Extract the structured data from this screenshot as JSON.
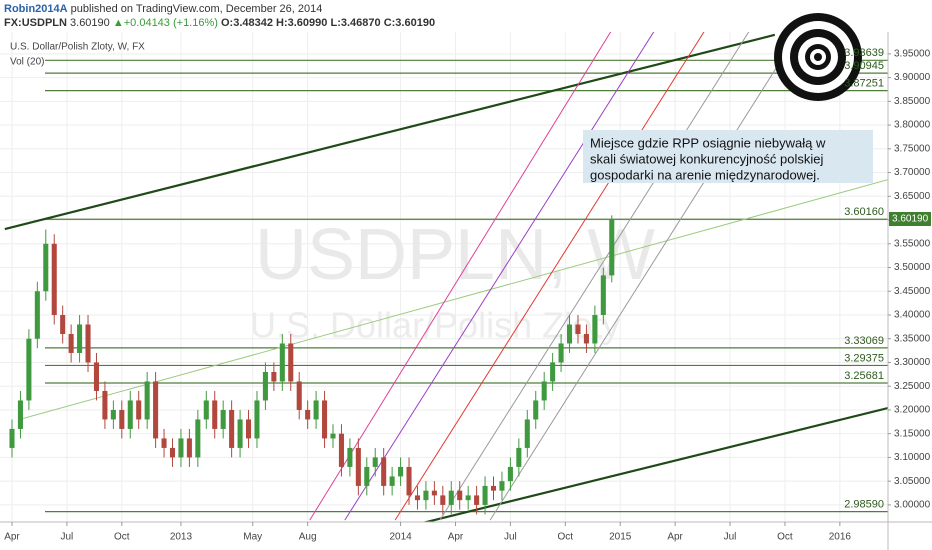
{
  "header": {
    "author": "Robin2014A",
    "published": "published on TradingView.com, December 26, 2014",
    "symbol": "FX:USDPLN",
    "price": "3.60190",
    "change": "+0.04143 (+1.16%)",
    "ohlc": [
      "O:3.48342",
      "H:3.60990",
      "L:3.46870",
      "C:3.60190"
    ]
  },
  "chart_data": {
    "type": "candlestick",
    "legend": [
      "U.S. Dollar/Polish Zloty, W, FX",
      "Vol (20)"
    ],
    "watermark": [
      "USDPLN, W",
      "U.S. Dollar/Polish Zloty"
    ],
    "annotation": [
      "Miejsce gdzie RPP osiągnie niebywałą w",
      "skali światowej konkurencyjność polskiej",
      "gospodarki na arenie międzynarodowej."
    ],
    "up_color": "#3f9a3f",
    "down_color": "#b2473e",
    "grid": true,
    "x": [
      0,
      2,
      4,
      6,
      8,
      10,
      12,
      14,
      16,
      18,
      20,
      22,
      24,
      26,
      28,
      30,
      32,
      34,
      36,
      38,
      40,
      42,
      44,
      46,
      48,
      50,
      52,
      54,
      56,
      58,
      60,
      62,
      64,
      66,
      68,
      70,
      72,
      74,
      76,
      78,
      80,
      82,
      84,
      86,
      88,
      90,
      92,
      94,
      96,
      98,
      100,
      102,
      104,
      106,
      108,
      110,
      112,
      114,
      116,
      118,
      120,
      122,
      124,
      126,
      128,
      130,
      132,
      134,
      136,
      138,
      140,
      142
    ],
    "open": [
      3.12,
      3.16,
      3.22,
      3.35,
      3.45,
      3.55,
      3.4,
      3.36,
      3.32,
      3.38,
      3.3,
      3.24,
      3.18,
      3.2,
      3.16,
      3.22,
      3.18,
      3.26,
      3.14,
      3.12,
      3.1,
      3.14,
      3.1,
      3.18,
      3.22,
      3.16,
      3.2,
      3.12,
      3.18,
      3.14,
      3.22,
      3.28,
      3.26,
      3.34,
      3.26,
      3.2,
      3.18,
      3.22,
      3.14,
      3.15,
      3.08,
      3.12,
      3.04,
      3.08,
      3.1,
      3.04,
      3.06,
      3.08,
      3.02,
      3.01,
      3.03,
      3.02,
      3.0,
      3.03,
      3.01,
      3.02,
      3.0,
      3.04,
      3.03,
      3.05,
      3.08,
      3.12,
      3.18,
      3.22,
      3.26,
      3.3,
      3.34,
      3.38,
      3.36,
      3.34,
      3.4,
      3.48342
    ],
    "high": [
      3.18,
      3.24,
      3.37,
      3.47,
      3.58,
      3.57,
      3.42,
      3.38,
      3.4,
      3.4,
      3.32,
      3.26,
      3.22,
      3.22,
      3.24,
      3.24,
      3.28,
      3.28,
      3.16,
      3.14,
      3.16,
      3.16,
      3.2,
      3.24,
      3.24,
      3.22,
      3.22,
      3.2,
      3.2,
      3.24,
      3.3,
      3.3,
      3.36,
      3.36,
      3.28,
      3.22,
      3.24,
      3.24,
      3.17,
      3.17,
      3.14,
      3.14,
      3.1,
      3.12,
      3.12,
      3.08,
      3.1,
      3.1,
      3.04,
      3.05,
      3.05,
      3.04,
      3.05,
      3.05,
      3.04,
      3.04,
      3.06,
      3.06,
      3.07,
      3.1,
      3.14,
      3.2,
      3.24,
      3.28,
      3.32,
      3.36,
      3.4,
      3.4,
      3.38,
      3.42,
      3.5,
      3.6099
    ],
    "low": [
      3.1,
      3.14,
      3.2,
      3.33,
      3.43,
      3.38,
      3.34,
      3.3,
      3.3,
      3.28,
      3.22,
      3.16,
      3.16,
      3.14,
      3.14,
      3.16,
      3.16,
      3.12,
      3.1,
      3.08,
      3.08,
      3.08,
      3.08,
      3.16,
      3.14,
      3.14,
      3.1,
      3.1,
      3.12,
      3.12,
      3.2,
      3.24,
      3.24,
      3.24,
      3.18,
      3.16,
      3.16,
      3.12,
      3.12,
      3.06,
      3.06,
      3.02,
      3.02,
      3.06,
      3.02,
      3.02,
      3.04,
      3.0,
      2.99,
      2.99,
      3.0,
      2.98,
      2.98,
      2.99,
      2.99,
      2.98,
      2.98,
      3.01,
      3.01,
      3.03,
      3.06,
      3.1,
      3.16,
      3.2,
      3.24,
      3.28,
      3.32,
      3.34,
      3.32,
      3.32,
      3.38,
      3.4687
    ],
    "close": [
      3.16,
      3.22,
      3.35,
      3.45,
      3.55,
      3.4,
      3.36,
      3.32,
      3.38,
      3.3,
      3.24,
      3.18,
      3.2,
      3.16,
      3.22,
      3.18,
      3.26,
      3.14,
      3.12,
      3.1,
      3.14,
      3.1,
      3.18,
      3.22,
      3.16,
      3.2,
      3.12,
      3.18,
      3.14,
      3.22,
      3.28,
      3.26,
      3.34,
      3.26,
      3.2,
      3.18,
      3.22,
      3.14,
      3.15,
      3.08,
      3.12,
      3.04,
      3.08,
      3.1,
      3.04,
      3.06,
      3.08,
      3.02,
      3.01,
      3.03,
      3.02,
      3.0,
      3.03,
      3.01,
      3.02,
      3.0,
      3.04,
      3.03,
      3.05,
      3.08,
      3.12,
      3.18,
      3.22,
      3.26,
      3.3,
      3.34,
      3.38,
      3.36,
      3.34,
      3.4,
      3.48342,
      3.6019
    ],
    "xlim": [
      -2.84,
      207.4
    ],
    "ylim": [
      2.964,
      3.996
    ],
    "xticks": [
      {
        "value": 0,
        "label": "Apr"
      },
      {
        "value": 13,
        "label": "Jul"
      },
      {
        "value": 26,
        "label": "Oct"
      },
      {
        "value": 40,
        "label": "2013"
      },
      {
        "value": 57,
        "label": "May"
      },
      {
        "value": 70,
        "label": "Aug"
      },
      {
        "value": 92,
        "label": "2014"
      },
      {
        "value": 105,
        "label": "Apr"
      },
      {
        "value": 118,
        "label": "Jul"
      },
      {
        "value": 131,
        "label": "Oct"
      },
      {
        "value": 144,
        "label": "2015"
      },
      {
        "value": 157,
        "label": "Apr"
      },
      {
        "value": 170,
        "label": "Jul"
      },
      {
        "value": 183,
        "label": "Oct"
      },
      {
        "value": 196,
        "label": "2016"
      }
    ],
    "yticks": [
      {
        "value": 3,
        "label": "3.00000"
      },
      {
        "value": 3.05,
        "label": "3.05000"
      },
      {
        "value": 3.1,
        "label": "3.10000"
      },
      {
        "value": 3.15,
        "label": "3.15000"
      },
      {
        "value": 3.2,
        "label": "3.20000"
      },
      {
        "value": 3.25,
        "label": "3.25000"
      },
      {
        "value": 3.3,
        "label": "3.30000"
      },
      {
        "value": 3.35,
        "label": "3.35000"
      },
      {
        "value": 3.4,
        "label": "3.40000"
      },
      {
        "value": 3.45,
        "label": "3.45000"
      },
      {
        "value": 3.5,
        "label": "3.50000"
      },
      {
        "value": 3.55,
        "label": "3.55000"
      },
      {
        "value": 3.6,
        "label": "3.60000"
      },
      {
        "value": 3.65,
        "label": "3.65000"
      },
      {
        "value": 3.7,
        "label": "3.70000"
      },
      {
        "value": 3.75,
        "label": "3.75000"
      },
      {
        "value": 3.8,
        "label": "3.80000"
      },
      {
        "value": 3.85,
        "label": "3.85000"
      },
      {
        "value": 3.9,
        "label": "3.90000"
      },
      {
        "value": 3.95,
        "label": "3.95000"
      }
    ],
    "levels": [
      3.93639,
      3.90945,
      3.87251,
      {
        "value": 3.6016,
        "label": "3.60160"
      },
      3.33069,
      3.29375,
      3.25681,
      {
        "value": 2.9859,
        "label": "2.98590"
      }
    ],
    "level_color": "#4f7d3a",
    "lines": [
      {
        "kind": "trend",
        "color": "#1f4a17",
        "points": [
          [
            -1.7,
            3.581
          ],
          [
            180.6,
            3.99
          ]
        ]
      },
      {
        "kind": "trend",
        "color": "#1f4a17",
        "points": [
          [
            95.4,
            2.958
          ],
          [
            207.4,
            3.204
          ]
        ]
      },
      {
        "kind": "channel",
        "color": "#9ccc7f",
        "points": [
          [
            1.4,
            3.179
          ],
          [
            207.4,
            3.685
          ]
        ]
      },
      {
        "kind": "channel",
        "color": "#e0409a",
        "points": [
          [
            70.5,
            2.968
          ],
          [
            142,
            4.0
          ]
        ]
      },
      {
        "kind": "channel",
        "color": "#9c3fc8",
        "points": [
          [
            78.8,
            2.968
          ],
          [
            152.2,
            4.0
          ]
        ]
      },
      {
        "kind": "channel",
        "color": "#e53935",
        "points": [
          [
            90.7,
            2.968
          ],
          [
            164.1,
            4.0
          ]
        ]
      },
      {
        "kind": "channel",
        "color": "#9a9a9a",
        "points": [
          [
            101.3,
            2.968
          ],
          [
            174.7,
            4.0
          ]
        ]
      },
      {
        "kind": "channel",
        "color": "#9a9a9a",
        "points": [
          [
            113.2,
            2.968
          ],
          [
            186.6,
            4.0
          ]
        ]
      }
    ]
  }
}
